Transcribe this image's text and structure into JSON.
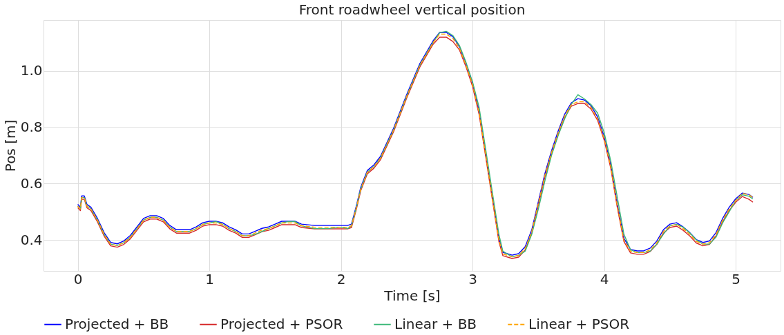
{
  "chart_data": {
    "type": "line",
    "title": "Front roadwheel vertical position",
    "xlabel": "Time [s]",
    "ylabel": "Pos [m]",
    "x": [
      0,
      0.02,
      0.03,
      0.05,
      0.07,
      0.1,
      0.15,
      0.2,
      0.25,
      0.3,
      0.35,
      0.4,
      0.45,
      0.5,
      0.55,
      0.6,
      0.65,
      0.7,
      0.75,
      0.8,
      0.85,
      0.9,
      0.95,
      1.0,
      1.05,
      1.1,
      1.15,
      1.2,
      1.25,
      1.3,
      1.35,
      1.4,
      1.45,
      1.5,
      1.55,
      1.6,
      1.65,
      1.7,
      1.8,
      1.9,
      2.0,
      2.05,
      2.08,
      2.12,
      2.15,
      2.2,
      2.25,
      2.3,
      2.4,
      2.5,
      2.6,
      2.7,
      2.75,
      2.8,
      2.85,
      2.9,
      2.95,
      3.0,
      3.05,
      3.1,
      3.15,
      3.2,
      3.23,
      3.3,
      3.35,
      3.4,
      3.45,
      3.5,
      3.55,
      3.6,
      3.65,
      3.7,
      3.75,
      3.8,
      3.85,
      3.9,
      3.95,
      4.0,
      4.05,
      4.1,
      4.15,
      4.2,
      4.25,
      4.3,
      4.35,
      4.4,
      4.45,
      4.5,
      4.55,
      4.6,
      4.65,
      4.7,
      4.75,
      4.8,
      4.85,
      4.9,
      4.95,
      5.0,
      5.05,
      5.1,
      5.13
    ],
    "series": [
      {
        "name": "Projected + BB",
        "color": "#0000ff",
        "line_style": "solid",
        "values": [
          0.526,
          0.516,
          0.556,
          0.556,
          0.526,
          0.516,
          0.476,
          0.426,
          0.391,
          0.386,
          0.396,
          0.416,
          0.446,
          0.476,
          0.486,
          0.486,
          0.476,
          0.451,
          0.436,
          0.436,
          0.436,
          0.446,
          0.461,
          0.466,
          0.466,
          0.461,
          0.446,
          0.436,
          0.421,
          0.421,
          0.431,
          0.441,
          0.446,
          0.456,
          0.466,
          0.466,
          0.466,
          0.456,
          0.451,
          0.451,
          0.451,
          0.451,
          0.456,
          0.526,
          0.586,
          0.646,
          0.666,
          0.696,
          0.796,
          0.916,
          1.026,
          1.106,
          1.136,
          1.136,
          1.121,
          1.086,
          1.026,
          0.956,
          0.856,
          0.706,
          0.556,
          0.406,
          0.356,
          0.346,
          0.351,
          0.376,
          0.436,
          0.536,
          0.636,
          0.716,
          0.786,
          0.846,
          0.886,
          0.901,
          0.896,
          0.876,
          0.836,
          0.766,
          0.666,
          0.526,
          0.406,
          0.366,
          0.361,
          0.361,
          0.371,
          0.396,
          0.436,
          0.456,
          0.461,
          0.446,
          0.426,
          0.401,
          0.391,
          0.396,
          0.426,
          0.476,
          0.516,
          0.546,
          0.566,
          0.561,
          0.551
        ]
      },
      {
        "name": "Projected + PSOR",
        "color": "#d62728",
        "line_style": "solid",
        "values": [
          0.514,
          0.504,
          0.544,
          0.544,
          0.514,
          0.504,
          0.464,
          0.414,
          0.379,
          0.374,
          0.384,
          0.404,
          0.434,
          0.464,
          0.474,
          0.474,
          0.464,
          0.439,
          0.424,
          0.424,
          0.424,
          0.434,
          0.449,
          0.454,
          0.454,
          0.449,
          0.434,
          0.424,
          0.409,
          0.409,
          0.419,
          0.429,
          0.434,
          0.444,
          0.454,
          0.454,
          0.454,
          0.444,
          0.439,
          0.439,
          0.439,
          0.439,
          0.444,
          0.514,
          0.574,
          0.634,
          0.654,
          0.684,
          0.784,
          0.904,
          1.014,
          1.094,
          1.119,
          1.119,
          1.104,
          1.074,
          1.014,
          0.944,
          0.844,
          0.694,
          0.544,
          0.394,
          0.344,
          0.334,
          0.339,
          0.364,
          0.424,
          0.524,
          0.624,
          0.704,
          0.774,
          0.834,
          0.874,
          0.884,
          0.884,
          0.864,
          0.824,
          0.754,
          0.654,
          0.514,
          0.394,
          0.354,
          0.349,
          0.349,
          0.359,
          0.384,
          0.424,
          0.444,
          0.449,
          0.434,
          0.414,
          0.389,
          0.379,
          0.384,
          0.414,
          0.464,
          0.504,
          0.534,
          0.554,
          0.544,
          0.534
        ]
      },
      {
        "name": "Linear + BB",
        "color": "#3cb878",
        "line_style": "solid",
        "values": [
          0.52,
          0.51,
          0.55,
          0.55,
          0.52,
          0.51,
          0.47,
          0.42,
          0.385,
          0.38,
          0.39,
          0.41,
          0.44,
          0.47,
          0.48,
          0.48,
          0.47,
          0.445,
          0.43,
          0.43,
          0.43,
          0.44,
          0.455,
          0.46,
          0.465,
          0.455,
          0.44,
          0.43,
          0.415,
          0.415,
          0.42,
          0.43,
          0.44,
          0.45,
          0.46,
          0.465,
          0.465,
          0.45,
          0.44,
          0.44,
          0.445,
          0.44,
          0.45,
          0.52,
          0.58,
          0.64,
          0.66,
          0.69,
          0.79,
          0.91,
          1.02,
          1.1,
          1.135,
          1.14,
          1.125,
          1.09,
          1.03,
          0.96,
          0.87,
          0.72,
          0.57,
          0.42,
          0.36,
          0.34,
          0.345,
          0.36,
          0.42,
          0.51,
          0.61,
          0.7,
          0.77,
          0.83,
          0.88,
          0.915,
          0.9,
          0.88,
          0.85,
          0.78,
          0.68,
          0.55,
          0.42,
          0.365,
          0.355,
          0.355,
          0.36,
          0.385,
          0.42,
          0.45,
          0.455,
          0.445,
          0.425,
          0.4,
          0.385,
          0.385,
          0.41,
          0.46,
          0.5,
          0.54,
          0.56,
          0.555,
          0.545
        ]
      },
      {
        "name": "Linear + PSOR",
        "color": "#ffa500",
        "line_style": "dashed",
        "values": [
          0.52,
          0.51,
          0.55,
          0.55,
          0.52,
          0.51,
          0.47,
          0.42,
          0.385,
          0.38,
          0.39,
          0.41,
          0.44,
          0.47,
          0.48,
          0.48,
          0.47,
          0.445,
          0.43,
          0.43,
          0.43,
          0.44,
          0.455,
          0.46,
          0.46,
          0.455,
          0.44,
          0.43,
          0.415,
          0.415,
          0.425,
          0.435,
          0.44,
          0.45,
          0.46,
          0.46,
          0.46,
          0.45,
          0.445,
          0.445,
          0.445,
          0.445,
          0.45,
          0.52,
          0.58,
          0.64,
          0.66,
          0.69,
          0.79,
          0.91,
          1.02,
          1.1,
          1.13,
          1.13,
          1.115,
          1.08,
          1.02,
          0.95,
          0.85,
          0.7,
          0.55,
          0.4,
          0.35,
          0.34,
          0.345,
          0.37,
          0.43,
          0.53,
          0.63,
          0.71,
          0.78,
          0.84,
          0.88,
          0.89,
          0.89,
          0.87,
          0.83,
          0.76,
          0.66,
          0.52,
          0.4,
          0.36,
          0.355,
          0.355,
          0.365,
          0.39,
          0.43,
          0.45,
          0.455,
          0.44,
          0.42,
          0.395,
          0.385,
          0.39,
          0.42,
          0.47,
          0.51,
          0.54,
          0.565,
          0.56,
          0.55
        ]
      }
    ],
    "xlim": [
      -0.26,
      5.34
    ],
    "xticks": [
      0,
      1,
      2,
      3,
      4,
      5
    ],
    "ylim": [
      0.29,
      1.18
    ],
    "yticks": [
      {
        "value": 0.4,
        "label": "0.4"
      },
      {
        "value": 0.6,
        "label": "0.6"
      },
      {
        "value": 0.8,
        "label": "0.8"
      },
      {
        "value": 1.0,
        "label": "1.0"
      }
    ],
    "grid": true,
    "legend": "bottom",
    "marker": "none"
  }
}
